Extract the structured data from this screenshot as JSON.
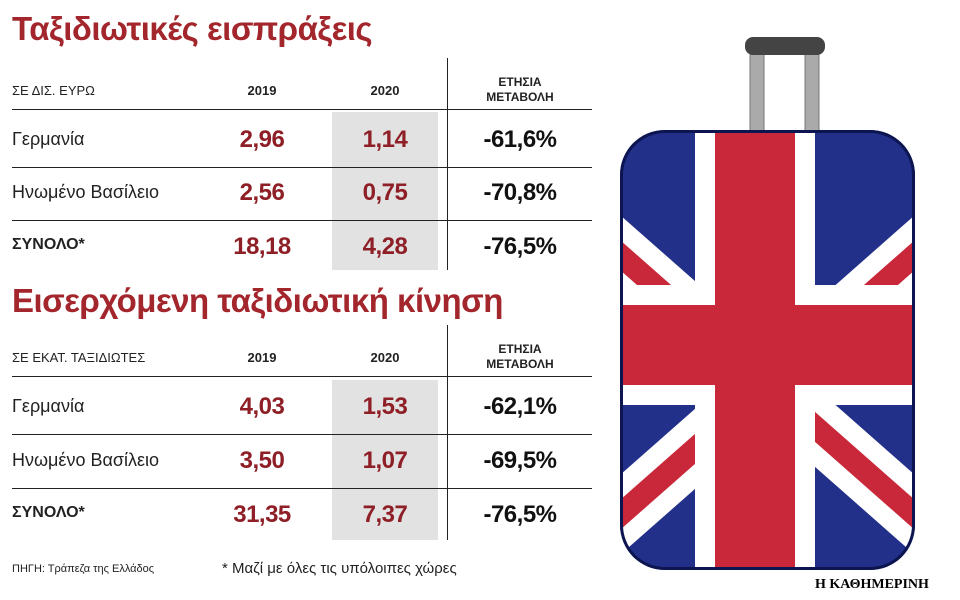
{
  "tables": [
    {
      "title": "Ταξιδιωτικές εισπράξεις",
      "header": [
        "ΣΕ ΔΙΣ. ΕΥΡΩ",
        "2019",
        "2020",
        "ΕΤΗΣΙΑ ΜΕΤΑΒΟΛΗ"
      ],
      "rows": [
        [
          "Γερμανία",
          "2,96",
          "1,14",
          "-61,6%"
        ],
        [
          "Ηνωμένο Βασίλειο",
          "2,56",
          "0,75",
          "-70,8%"
        ],
        [
          "ΣΥΝΟΛΟ*",
          "18,18",
          "4,28",
          "-76,5%"
        ]
      ]
    },
    {
      "title": "Εισερχόμενη ταξιδιωτική κίνηση",
      "header": [
        "ΣΕ ΕΚΑΤ. ΤΑΞΙΔΙΩΤΕΣ",
        "2019",
        "2020",
        "ΕΤΗΣΙΑ ΜΕΤΑΒΟΛΗ"
      ],
      "rows": [
        [
          "Γερμανία",
          "4,03",
          "1,53",
          "-62,1%"
        ],
        [
          "Ηνωμένο Βασίλειο",
          "3,50",
          "1,07",
          "-69,5%"
        ],
        [
          "ΣΥΝΟΛΟ*",
          "31,35",
          "7,37",
          "-76,5%"
        ]
      ]
    }
  ],
  "source": "ΠΗΓΗ: Τράπεζα της Ελλάδος",
  "footnote": "* Μαζί με όλες τις υπόλοιπες χώρες",
  "brand": "Η ΚΑΘΗΜΕΡΙΝΗ"
}
